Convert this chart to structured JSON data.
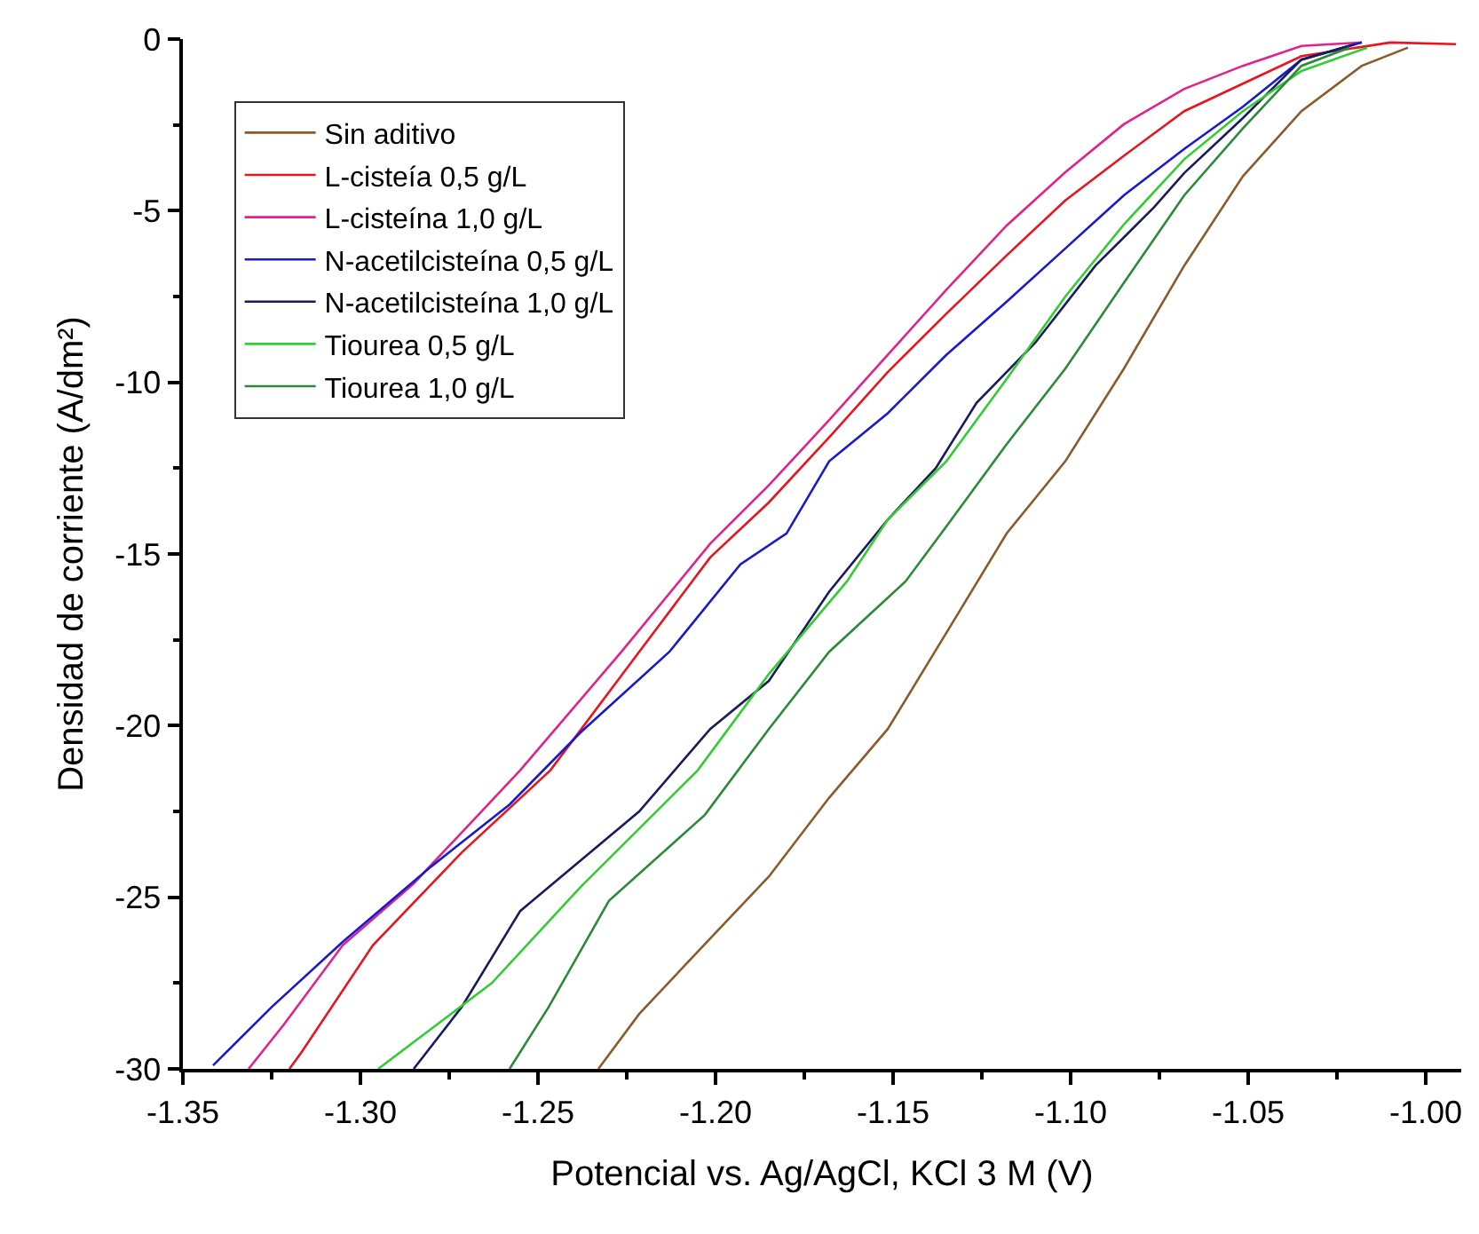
{
  "chart_data": {
    "type": "line",
    "xlabel": "Potencial vs. Ag/AgCl, KCl 3 M (V)",
    "ylabel": "Densidad de corriente (A/dm²)",
    "xlim": [
      -1.35,
      -0.99
    ],
    "ylim": [
      -30,
      0
    ],
    "xticks": [
      {
        "value": -1.35,
        "label": "-1.35"
      },
      {
        "value": -1.3,
        "label": "-1.30"
      },
      {
        "value": -1.25,
        "label": "-1.25"
      },
      {
        "value": -1.2,
        "label": "-1.20"
      },
      {
        "value": -1.15,
        "label": "-1.15"
      },
      {
        "value": -1.1,
        "label": "-1.10"
      },
      {
        "value": -1.05,
        "label": "-1.05"
      },
      {
        "value": -1,
        "label": "-1.00"
      }
    ],
    "yticks": [
      -30,
      -25,
      -20,
      -15,
      -10,
      -5,
      0
    ],
    "grid": false,
    "legend": "top left",
    "marker": "none",
    "line_style": "solid",
    "series": [
      {
        "name": "Sin aditivo",
        "color": "#8b5a2b",
        "x": [
          -1.233,
          -1.2215,
          -1.2015,
          -1.185,
          -1.168,
          -1.1515,
          -1.135,
          -1.118,
          -1.1015,
          -1.085,
          -1.068,
          -1.0515,
          -1.035,
          -1.018,
          -1.005
        ],
        "values": [
          -30,
          -28.4,
          -26.2,
          -24.4,
          -22.1,
          -20.1,
          -17.3,
          -14.4,
          -12.3,
          -9.6,
          -6.6,
          -4.0,
          -2.1,
          -0.78,
          -0.25
        ]
      },
      {
        "name": "L-cisteía 0,5 g/L",
        "color": "#e8141e",
        "x": [
          -1.32,
          -1.3165,
          -1.2965,
          -1.2715,
          -1.2465,
          -1.2215,
          -1.2015,
          -1.185,
          -1.168,
          -1.1515,
          -1.135,
          -1.118,
          -1.1015,
          -1.085,
          -1.068,
          -1.0515,
          -1.035,
          -1.01,
          -0.9915
        ],
        "values": [
          -30,
          -29.5,
          -26.4,
          -23.7,
          -21.3,
          -17.85,
          -15.1,
          -13.5,
          -11.6,
          -9.7,
          -8.0,
          -6.3,
          -4.7,
          -3.4,
          -2.1,
          -1.3,
          -0.5,
          -0.1,
          -0.15
        ]
      },
      {
        "name": "L-cisteína 1,0 g/L",
        "color": "#e0228a",
        "x": [
          -1.3315,
          -1.3215,
          -1.305,
          -1.285,
          -1.255,
          -1.2265,
          -1.2015,
          -1.185,
          -1.168,
          -1.1515,
          -1.135,
          -1.118,
          -1.1015,
          -1.085,
          -1.068,
          -1.0515,
          -1.035,
          -1.018
        ],
        "values": [
          -30,
          -28.7,
          -26.4,
          -24.6,
          -21.3,
          -17.85,
          -14.7,
          -13.0,
          -11.1,
          -9.2,
          -7.3,
          -5.43,
          -3.88,
          -2.48,
          -1.45,
          -0.78,
          -0.2,
          -0.1
        ]
      },
      {
        "name": "N-acetilcisteína 0,5 g/L",
        "color": "#1a1acc",
        "x": [
          -1.3415,
          -1.325,
          -1.305,
          -1.28,
          -1.258,
          -1.238,
          -1.213,
          -1.193,
          -1.18,
          -1.168,
          -1.1515,
          -1.135,
          -1.118,
          -1.1015,
          -1.085,
          -1.068,
          -1.0515,
          -1.035,
          -1.018
        ],
        "values": [
          -29.9,
          -28.2,
          -26.3,
          -24.1,
          -22.3,
          -20.2,
          -17.85,
          -15.3,
          -14.4,
          -12.3,
          -10.9,
          -9.2,
          -7.65,
          -6.1,
          -4.55,
          -3.2,
          -1.97,
          -0.6,
          -0.1
        ]
      },
      {
        "name": "N-acetilcisteína 1,0 g/L",
        "color": "#1a1a5e",
        "x": [
          -1.285,
          -1.2715,
          -1.255,
          -1.2215,
          -1.2015,
          -1.185,
          -1.168,
          -1.1515,
          -1.138,
          -1.1265,
          -1.11,
          -1.093,
          -1.0765,
          -1.068,
          -1.0515,
          -1.035,
          -1.02
        ],
        "values": [
          -30,
          -28.2,
          -25.4,
          -22.5,
          -20.1,
          -18.7,
          -16.1,
          -14.0,
          -12.5,
          -10.6,
          -8.85,
          -6.6,
          -4.9,
          -3.9,
          -2.3,
          -0.6,
          -0.15
        ]
      },
      {
        "name": "Tiourea 0,5 g/L",
        "color": "#33cc33",
        "x": [
          -1.295,
          -1.263,
          -1.238,
          -1.205,
          -1.185,
          -1.163,
          -1.1515,
          -1.135,
          -1.118,
          -1.1015,
          -1.085,
          -1.068,
          -1.0515,
          -1.035,
          -1.0165
        ],
        "values": [
          -30,
          -27.5,
          -24.7,
          -21.3,
          -18.5,
          -15.8,
          -14.0,
          -12.3,
          -9.9,
          -7.5,
          -5.4,
          -3.5,
          -2.1,
          -0.93,
          -0.25
        ]
      },
      {
        "name": "Tiourea 1,0 g/L",
        "color": "#2a8a3a",
        "x": [
          -1.258,
          -1.247,
          -1.23,
          -1.203,
          -1.185,
          -1.168,
          -1.1465,
          -1.135,
          -1.118,
          -1.1015,
          -1.085,
          -1.068,
          -1.0515,
          -1.035,
          -1.0215
        ],
        "values": [
          -30,
          -28.2,
          -25.1,
          -22.6,
          -20.1,
          -17.85,
          -15.8,
          -14.2,
          -11.8,
          -9.6,
          -7.1,
          -4.55,
          -2.6,
          -0.78,
          -0.25
        ]
      }
    ]
  }
}
